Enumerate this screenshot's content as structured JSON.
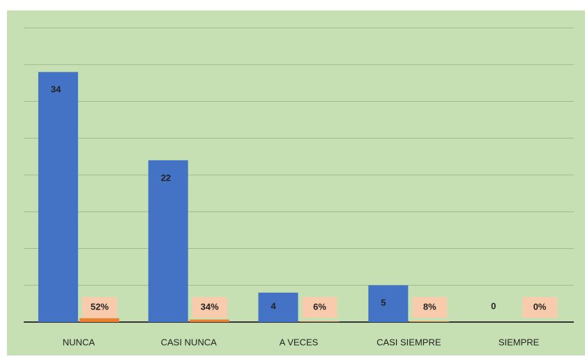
{
  "chart_data": {
    "type": "bar",
    "categories": [
      "NUNCA",
      "CASI NUNCA",
      "A VECES",
      "CASI SIEMPRE",
      "SIEMPRE"
    ],
    "series": [
      {
        "color": "#4472c4",
        "values": [
          34,
          22,
          4,
          5,
          0
        ]
      },
      {
        "color": "#ed7d31",
        "values": [
          0.52,
          0.34,
          0.06,
          0.08,
          0
        ],
        "value_labels": [
          "52%",
          "34%",
          "6%",
          "8%",
          "0%"
        ]
      }
    ],
    "ylim": [
      0,
      40
    ],
    "yticks": [
      0,
      5,
      10,
      15,
      20,
      25,
      30,
      35,
      40
    ],
    "grid": true
  }
}
